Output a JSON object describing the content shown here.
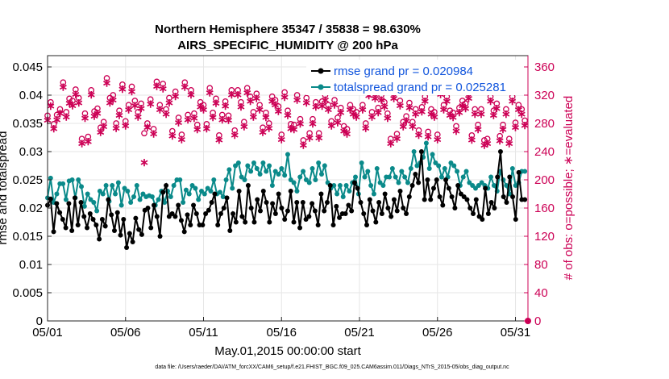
{
  "chart_data": {
    "type": "line",
    "title": "Northern Hemisphere 35347 / 35838 = 98.630%",
    "subtitle": "AIRS_SPECIFIC_HUMIDITY @ 200 hPa",
    "xlabel": "May.01,2015 00:00:00 start",
    "ylabel": "rmse and totalspread",
    "y2label": "# of obs: o=possible; ∗=evaluated",
    "footer": "data file: /Users/raeder/DAI/ATM_forcXX/CAM6_setup/f.e21.FHIST_BGC.f09_025.CAM6assim.011/Diags_NTrS_2015-05/obs_diag_output.nc",
    "x_tick_labels": [
      "05/01",
      "05/06",
      "05/11",
      "05/16",
      "05/21",
      "05/26",
      "05/31"
    ],
    "x_tick_days": [
      0,
      5,
      10,
      15,
      20,
      25,
      30
    ],
    "xlim_days": [
      0,
      30.8
    ],
    "ylim": [
      0,
      0.047
    ],
    "y_ticks": [
      0,
      0.005,
      0.01,
      0.015,
      0.02,
      0.025,
      0.03,
      0.035,
      0.04,
      0.045
    ],
    "y_tick_labels": [
      "0",
      "0.005",
      "0.01",
      "0.015",
      "0.02",
      "0.025",
      "0.03",
      "0.035",
      "0.04",
      "0.045"
    ],
    "y2lim": [
      0,
      376
    ],
    "y2_ticks": [
      0,
      40,
      80,
      120,
      160,
      200,
      240,
      280,
      320,
      360
    ],
    "y2_tick_labels": [
      "0",
      "40",
      "80",
      "120",
      "160",
      "200",
      "240",
      "280",
      "320",
      "360"
    ],
    "grid": true,
    "legend_position": "top-right",
    "series": [
      {
        "name": "rmse grand pr = 0.020984",
        "color": "#000000",
        "axis": "left",
        "values": [
          0.0205,
          0.0216,
          0.0158,
          0.0208,
          0.0192,
          0.018,
          0.0165,
          0.0208,
          0.016,
          0.0218,
          0.017,
          0.021,
          0.0185,
          0.0165,
          0.019,
          0.018,
          0.017,
          0.0145,
          0.018,
          0.0168,
          0.0215,
          0.0188,
          0.016,
          0.0192,
          0.0152,
          0.018,
          0.013,
          0.0155,
          0.014,
          0.0182,
          0.0162,
          0.0153,
          0.0196,
          0.02,
          0.0165,
          0.0205,
          0.0185,
          0.015,
          0.0228,
          0.024,
          0.0185,
          0.019,
          0.0185,
          0.0205,
          0.0178,
          0.0158,
          0.0188,
          0.017,
          0.0205,
          0.019,
          0.017,
          0.017,
          0.019,
          0.0196,
          0.021,
          0.0225,
          0.017,
          0.019,
          0.02,
          0.0218,
          0.016,
          0.019,
          0.0175,
          0.023,
          0.0185,
          0.0175,
          0.024,
          0.02,
          0.0175,
          0.0215,
          0.0195,
          0.023,
          0.021,
          0.0175,
          0.0208,
          0.019,
          0.0225,
          0.02,
          0.018,
          0.0195,
          0.023,
          0.0175,
          0.021,
          0.0165,
          0.021,
          0.018,
          0.0185,
          0.0208,
          0.0195,
          0.017,
          0.0225,
          0.0195,
          0.021,
          0.024,
          0.017,
          0.0203,
          0.0183,
          0.019,
          0.019,
          0.0205,
          0.0195,
          0.0245,
          0.0235,
          0.021,
          0.019,
          0.017,
          0.0215,
          0.0195,
          0.0175,
          0.021,
          0.019,
          0.0225,
          0.02,
          0.0185,
          0.0215,
          0.0195,
          0.023,
          0.02,
          0.019,
          0.022,
          0.024,
          0.026,
          0.0245,
          0.03,
          0.0215,
          0.025,
          0.0215,
          0.0235,
          0.025,
          0.022,
          0.0205,
          0.025,
          0.0235,
          0.022,
          0.02,
          0.024,
          0.0225,
          0.022,
          0.0215,
          0.02,
          0.019,
          0.0215,
          0.0185,
          0.018,
          0.0235,
          0.019,
          0.021,
          0.02,
          0.0255,
          0.03,
          0.022,
          0.021,
          0.0255,
          0.022,
          0.018,
          0.0263,
          0.0215,
          0.0215
        ]
      },
      {
        "name": "totalspread grand pr = 0.025281",
        "color": "#0a8a8a",
        "axis": "left",
        "values": [
          0.0218,
          0.0253,
          0.021,
          0.0225,
          0.0243,
          0.0243,
          0.0215,
          0.0248,
          0.025,
          0.0218,
          0.025,
          0.0238,
          0.0203,
          0.0225,
          0.0215,
          0.021,
          0.0195,
          0.023,
          0.0225,
          0.024,
          0.0212,
          0.024,
          0.0225,
          0.0245,
          0.0205,
          0.0235,
          0.023,
          0.021,
          0.022,
          0.024,
          0.0215,
          0.0225,
          0.022,
          0.0222,
          0.022,
          0.0205,
          0.0215,
          0.023,
          0.021,
          0.023,
          0.022,
          0.024,
          0.025,
          0.025,
          0.021,
          0.0232,
          0.0225,
          0.024,
          0.0235,
          0.0215,
          0.023,
          0.0225,
          0.0235,
          0.023,
          0.025,
          0.0225,
          0.0228,
          0.022,
          0.025,
          0.0268,
          0.0235,
          0.0275,
          0.028,
          0.0255,
          0.025,
          0.0275,
          0.0265,
          0.028,
          0.027,
          0.026,
          0.028,
          0.0265,
          0.0275,
          0.024,
          0.0265,
          0.026,
          0.027,
          0.0258,
          0.0295,
          0.025,
          0.0245,
          0.023,
          0.0255,
          0.0265,
          0.025,
          0.0245,
          0.027,
          0.025,
          0.028,
          0.026,
          0.0275,
          0.0245,
          0.0235,
          0.024,
          0.0225,
          0.024,
          0.022,
          0.024,
          0.023,
          0.0245,
          0.0255,
          0.0225,
          0.028,
          0.0255,
          0.0265,
          0.024,
          0.0225,
          0.027,
          0.0245,
          0.024,
          0.0255,
          0.0255,
          0.027,
          0.0255,
          0.0245,
          0.0265,
          0.0255,
          0.0245,
          0.027,
          0.03,
          0.0275,
          0.028,
          0.029,
          0.0315,
          0.027,
          0.0295,
          0.028,
          0.0275,
          0.0255,
          0.027,
          0.0255,
          0.028,
          0.0275,
          0.0265,
          0.024,
          0.0255,
          0.0265,
          0.0245,
          0.024,
          0.0235,
          0.024,
          0.0245,
          0.024,
          0.0235,
          0.0255,
          0.024,
          0.023,
          0.0265,
          0.025,
          0.024,
          0.0225,
          0.027,
          0.024,
          0.0245,
          0.0265,
          0.0265
        ]
      },
      {
        "name": "possible",
        "color": "#cc0055",
        "axis": "right",
        "marker": "o",
        "values": [
          291,
          310,
          279,
          292,
          300,
          338,
          296,
          315,
          312,
          328,
          316,
          258,
          294,
          261,
          327,
          297,
          301,
          274,
          282,
          344,
          316,
          320,
          280,
          298,
          335,
          283,
          306,
          332,
          312,
          296,
          308,
          266,
          280,
          314,
          272,
          339,
          306,
          336,
          300,
          316,
          269,
          325,
          288,
          264,
          338,
          292,
          327,
          294,
          278,
          310,
          306,
          279,
          330,
          295,
          315,
          263,
          292,
          311,
          291,
          327,
          270,
          327,
          310,
          282,
          330,
          318,
          296,
          322,
          306,
          274,
          295,
          280,
          318,
          313,
          304,
          264,
          324,
          298,
          279,
          278,
          320,
          286,
          256,
          316,
          266,
          286,
          310,
          266,
          311,
          320,
          306,
          283,
          313,
          288,
          302,
          276,
          272,
          306,
          300,
          296,
          333,
          306,
          280,
          326,
          296,
          322,
          302,
          320,
          310,
          294,
          258,
          322,
          265,
          312,
          282,
          290,
          309,
          282,
          300,
          270,
          303,
          318,
          268,
          300,
          296,
          264,
          328,
          306,
          318,
          298,
          295,
          276,
          302,
          312,
          308,
          322,
          263,
          300,
          278,
          300,
          256,
          258,
          318,
          298,
          308,
          262,
          278,
          300,
          258,
          318,
          281,
          306,
          300,
          284
        ]
      },
      {
        "name": "evaluated",
        "color": "#cc0055",
        "axis": "right",
        "marker": "*",
        "values": [
          285,
          305,
          273,
          286,
          295,
          332,
          290,
          309,
          306,
          322,
          310,
          252,
          288,
          255,
          321,
          291,
          295,
          268,
          276,
          338,
          310,
          314,
          274,
          292,
          329,
          277,
          300,
          326,
          306,
          290,
          302,
          225,
          275,
          308,
          266,
          333,
          300,
          330,
          294,
          310,
          263,
          319,
          282,
          258,
          332,
          286,
          321,
          288,
          272,
          304,
          300,
          273,
          324,
          289,
          309,
          257,
          286,
          305,
          285,
          321,
          264,
          321,
          304,
          276,
          324,
          312,
          290,
          316,
          300,
          268,
          289,
          274,
          312,
          307,
          298,
          258,
          318,
          292,
          273,
          272,
          314,
          280,
          250,
          310,
          260,
          280,
          304,
          260,
          305,
          314,
          300,
          277,
          307,
          282,
          296,
          270,
          266,
          300,
          294,
          290,
          327,
          300,
          274,
          320,
          290,
          316,
          296,
          314,
          304,
          288,
          252,
          316,
          259,
          306,
          276,
          284,
          303,
          276,
          294,
          264,
          297,
          312,
          262,
          294,
          290,
          258,
          322,
          300,
          312,
          292,
          289,
          270,
          296,
          306,
          302,
          316,
          257,
          294,
          272,
          294,
          250,
          252,
          312,
          292,
          302,
          256,
          272,
          294,
          252,
          312,
          275,
          300,
          294,
          278
        ]
      }
    ]
  }
}
